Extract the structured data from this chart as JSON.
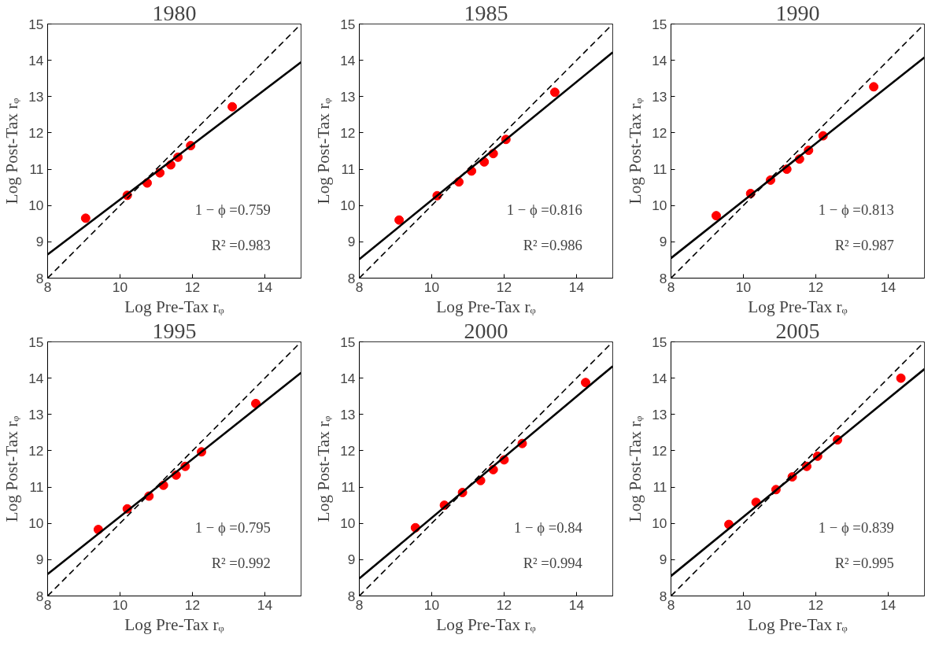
{
  "chart_data": [
    {
      "type": "scatter",
      "title": "1980",
      "xlabel": "Log Pre-Tax rᵩ",
      "ylabel": "Log Post-Tax rᵩ",
      "xlim": [
        8,
        15
      ],
      "ylim": [
        8,
        15
      ],
      "xticks": [
        8,
        10,
        12,
        14
      ],
      "yticks": [
        8,
        9,
        10,
        11,
        12,
        13,
        14,
        15
      ],
      "annotations": [
        "1 − ϕ =0.759",
        "R² =0.983"
      ],
      "series": [
        {
          "color": "#ff0000",
          "marker": "circle",
          "x": [
            9.05,
            10.2,
            10.75,
            11.1,
            11.4,
            11.6,
            11.95,
            13.1
          ],
          "values": [
            9.65,
            10.28,
            10.62,
            10.9,
            11.12,
            11.33,
            11.65,
            12.72
          ]
        },
        {
          "type": "line",
          "color": "#000000",
          "line_style": "solid",
          "x": [
            8,
            15
          ],
          "values": [
            8.65,
            13.95
          ]
        },
        {
          "type": "line",
          "color": "#000000",
          "line_style": "dashed",
          "x": [
            8,
            15
          ],
          "values": [
            8,
            15
          ]
        }
      ]
    },
    {
      "type": "scatter",
      "title": "1985",
      "xlabel": "Log Pre-Tax rᵩ",
      "ylabel": "Log Post-Tax rᵩ",
      "xlim": [
        8,
        15
      ],
      "ylim": [
        8,
        15
      ],
      "xticks": [
        8,
        10,
        12,
        14
      ],
      "yticks": [
        8,
        9,
        10,
        11,
        12,
        13,
        14,
        15
      ],
      "annotations": [
        "1 − ϕ =0.816",
        "R² =0.986"
      ],
      "series": [
        {
          "color": "#ff0000",
          "marker": "circle",
          "x": [
            9.1,
            10.15,
            10.75,
            11.1,
            11.45,
            11.7,
            12.05,
            13.4
          ],
          "values": [
            9.6,
            10.27,
            10.65,
            10.95,
            11.2,
            11.43,
            11.82,
            13.12
          ]
        },
        {
          "type": "line",
          "color": "#000000",
          "line_style": "solid",
          "x": [
            8,
            15
          ],
          "values": [
            8.52,
            14.22
          ]
        },
        {
          "type": "line",
          "color": "#000000",
          "line_style": "dashed",
          "x": [
            8,
            15
          ],
          "values": [
            8,
            15
          ]
        }
      ]
    },
    {
      "type": "scatter",
      "title": "1990",
      "xlabel": "Log Pre-Tax rᵩ",
      "ylabel": "Log Post-Tax rᵩ",
      "xlim": [
        8,
        15
      ],
      "ylim": [
        8,
        15
      ],
      "xticks": [
        8,
        10,
        12,
        14
      ],
      "yticks": [
        8,
        9,
        10,
        11,
        12,
        13,
        14,
        15
      ],
      "annotations": [
        "1 − ϕ =0.813",
        "R² =0.987"
      ],
      "series": [
        {
          "color": "#ff0000",
          "marker": "circle",
          "x": [
            9.25,
            10.2,
            10.75,
            11.2,
            11.55,
            11.8,
            12.2,
            13.6
          ],
          "values": [
            9.72,
            10.33,
            10.7,
            11.0,
            11.28,
            11.52,
            11.92,
            13.27
          ]
        },
        {
          "type": "line",
          "color": "#000000",
          "line_style": "solid",
          "x": [
            8,
            15
          ],
          "values": [
            8.55,
            14.08
          ]
        },
        {
          "type": "line",
          "color": "#000000",
          "line_style": "dashed",
          "x": [
            8,
            15
          ],
          "values": [
            8,
            15
          ]
        }
      ]
    },
    {
      "type": "scatter",
      "title": "1995",
      "xlabel": "Log Pre-Tax rᵩ",
      "ylabel": "Log Post-Tax rᵩ",
      "xlim": [
        8,
        15
      ],
      "ylim": [
        8,
        15
      ],
      "xticks": [
        8,
        10,
        12,
        14
      ],
      "yticks": [
        8,
        9,
        10,
        11,
        12,
        13,
        14,
        15
      ],
      "annotations": [
        "1 − ϕ =0.795",
        "R² =0.992"
      ],
      "series": [
        {
          "color": "#ff0000",
          "marker": "circle",
          "x": [
            9.4,
            10.2,
            10.8,
            11.2,
            11.55,
            11.8,
            12.25,
            13.75
          ],
          "values": [
            9.83,
            10.4,
            10.75,
            11.05,
            11.33,
            11.57,
            11.97,
            13.3
          ]
        },
        {
          "type": "line",
          "color": "#000000",
          "line_style": "solid",
          "x": [
            8,
            15
          ],
          "values": [
            8.6,
            14.15
          ]
        },
        {
          "type": "line",
          "color": "#000000",
          "line_style": "dashed",
          "x": [
            8,
            15
          ],
          "values": [
            8,
            15
          ]
        }
      ]
    },
    {
      "type": "scatter",
      "title": "2000",
      "xlabel": "Log Pre-Tax rᵩ",
      "ylabel": "Log Post-Tax rᵩ",
      "xlim": [
        8,
        15
      ],
      "ylim": [
        8,
        15
      ],
      "xticks": [
        8,
        10,
        12,
        14
      ],
      "yticks": [
        8,
        9,
        10,
        11,
        12,
        13,
        14,
        15
      ],
      "annotations": [
        "1 − ϕ =0.84",
        "R² =0.994"
      ],
      "series": [
        {
          "color": "#ff0000",
          "marker": "circle",
          "x": [
            9.55,
            10.35,
            10.85,
            11.35,
            11.7,
            12.0,
            12.5,
            14.25
          ],
          "values": [
            9.88,
            10.5,
            10.85,
            11.18,
            11.48,
            11.75,
            12.2,
            13.88
          ]
        },
        {
          "type": "line",
          "color": "#000000",
          "line_style": "solid",
          "x": [
            8,
            15
          ],
          "values": [
            8.48,
            14.33
          ]
        },
        {
          "type": "line",
          "color": "#000000",
          "line_style": "dashed",
          "x": [
            8,
            15
          ],
          "values": [
            8,
            15
          ]
        }
      ]
    },
    {
      "type": "scatter",
      "title": "2005",
      "xlabel": "Log Pre-Tax rᵩ",
      "ylabel": "Log Post-Tax rᵩ",
      "xlim": [
        8,
        15
      ],
      "ylim": [
        8,
        15
      ],
      "xticks": [
        8,
        10,
        12,
        14
      ],
      "yticks": [
        8,
        9,
        10,
        11,
        12,
        13,
        14,
        15
      ],
      "annotations": [
        "1 − ϕ =0.839",
        "R² =0.995"
      ],
      "series": [
        {
          "color": "#ff0000",
          "marker": "circle",
          "x": [
            9.6,
            10.35,
            10.9,
            11.35,
            11.75,
            12.05,
            12.6,
            14.35
          ],
          "values": [
            9.97,
            10.58,
            10.93,
            11.28,
            11.57,
            11.85,
            12.3,
            14.0
          ]
        },
        {
          "type": "line",
          "color": "#000000",
          "line_style": "solid",
          "x": [
            8,
            15
          ],
          "values": [
            8.55,
            14.25
          ]
        },
        {
          "type": "line",
          "color": "#000000",
          "line_style": "dashed",
          "x": [
            8,
            15
          ],
          "values": [
            8,
            15
          ]
        }
      ]
    }
  ]
}
